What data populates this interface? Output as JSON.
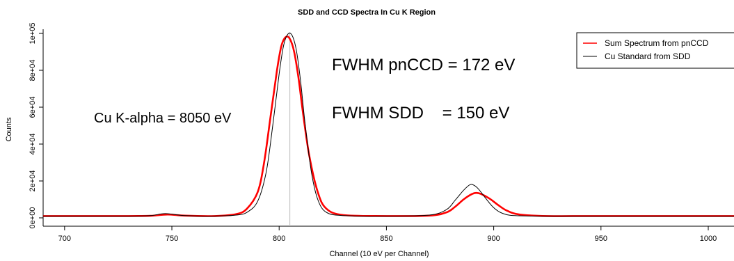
{
  "chart_data": {
    "type": "line",
    "title": "SDD and CCD Spectra In Cu K Region",
    "xlabel": "Channel (10 eV per Channel)",
    "ylabel": "Counts",
    "xlim": [
      690,
      1012
    ],
    "ylim": [
      0,
      100000
    ],
    "x_ticks": [
      700,
      750,
      800,
      850,
      900,
      950,
      1000
    ],
    "x_tick_labels": [
      "700",
      "750",
      "800",
      "850",
      "900",
      "950",
      "1000"
    ],
    "y_ticks": [
      0,
      20000,
      40000,
      60000,
      80000,
      100000
    ],
    "y_tick_labels": [
      "0e+00",
      "2e+04",
      "4e+04",
      "6e+04",
      "8e+04",
      "1e+05"
    ],
    "reference_line_x": 805,
    "legend_position": "top-right",
    "series": [
      {
        "name": "Sum Spectrum from pnCCD",
        "color": "#ff0000",
        "x": [
          690,
          700,
          730,
          740,
          748,
          756,
          770,
          780,
          785,
          790,
          793,
          796,
          799,
          801,
          803,
          805,
          807,
          809,
          811,
          814,
          818,
          822,
          830,
          850,
          870,
          878,
          882,
          886,
          890,
          892,
          894,
          898,
          902,
          906,
          912,
          925,
          950,
          1012
        ],
        "values": [
          1000,
          1000,
          1000,
          1100,
          1800,
          1200,
          1000,
          2000,
          5000,
          14000,
          30000,
          55000,
          80000,
          93000,
          98000,
          97000,
          90000,
          76000,
          58000,
          34000,
          14000,
          5000,
          1500,
          1000,
          1200,
          3000,
          6000,
          10000,
          13000,
          13500,
          13000,
          10500,
          7000,
          4000,
          1800,
          1000,
          1000,
          1000
        ]
      },
      {
        "name": "Cu Standard from SDD",
        "color": "#000000",
        "x": [
          690,
          700,
          730,
          740,
          747,
          756,
          770,
          780,
          785,
          790,
          794,
          797,
          800,
          802,
          804,
          806,
          808,
          810,
          812,
          815,
          818,
          822,
          830,
          850,
          870,
          878,
          882,
          886,
          889,
          891,
          893,
          896,
          900,
          904,
          910,
          925,
          950,
          1012
        ],
        "values": [
          1000,
          1000,
          1000,
          1200,
          2300,
          1200,
          1000,
          1500,
          3000,
          9000,
          25000,
          50000,
          78000,
          93000,
          99500,
          99000,
          91000,
          74000,
          52000,
          25000,
          10000,
          3000,
          1200,
          1000,
          1500,
          4500,
          9500,
          15000,
          18000,
          17500,
          15500,
          11000,
          5500,
          2500,
          1200,
          1000,
          1000,
          1000
        ]
      }
    ],
    "annotations": [
      {
        "text": "Cu K-alpha = 8050 eV",
        "size": "small"
      },
      {
        "text": "FWHM pnCCD = 172 eV",
        "size": "large"
      },
      {
        "text": "FWHM SDD    = 150 eV",
        "size": "large"
      }
    ]
  }
}
